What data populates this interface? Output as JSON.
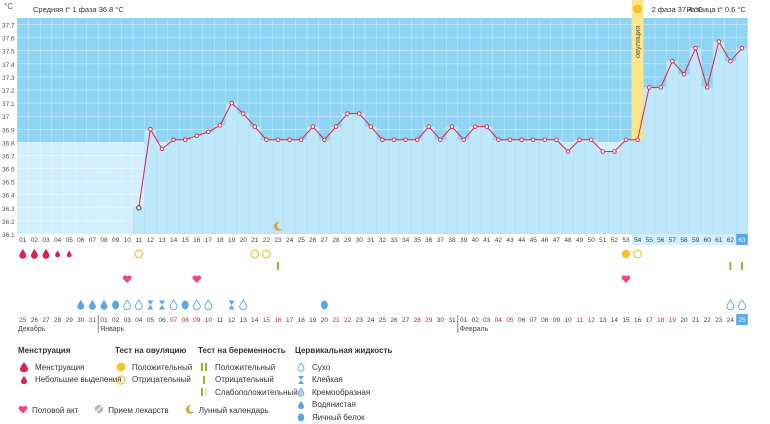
{
  "chart_data": {
    "type": "line",
    "axis_unit": "°C",
    "y_ticks": [
      "36.1",
      "36.2",
      "36.3",
      "36.4",
      "36.5",
      "36.6",
      "36.7",
      "36.8",
      "36.9",
      "37",
      "37.1",
      "37.2",
      "37.3",
      "37.4",
      "37.5",
      "37.6",
      "37.7"
    ],
    "ylim": [
      36.1,
      37.75
    ],
    "cycle_days": [
      "01",
      "02",
      "03",
      "04",
      "05",
      "06",
      "07",
      "08",
      "09",
      "10",
      "11",
      "12",
      "13",
      "14",
      "15",
      "16",
      "17",
      "18",
      "19",
      "20",
      "21",
      "22",
      "23",
      "24",
      "25",
      "26",
      "27",
      "28",
      "29",
      "30",
      "31",
      "32",
      "33",
      "34",
      "35",
      "36",
      "37",
      "38",
      "39",
      "40",
      "41",
      "42",
      "43",
      "44",
      "45",
      "46",
      "47",
      "48",
      "49",
      "50",
      "51",
      "52",
      "53",
      "54",
      "55",
      "56",
      "57",
      "58",
      "59",
      "60",
      "61",
      "62",
      "63"
    ],
    "temperatures": [
      null,
      null,
      null,
      null,
      null,
      null,
      null,
      null,
      null,
      null,
      36.3,
      36.9,
      36.75,
      36.82,
      36.82,
      36.85,
      36.88,
      36.93,
      37.1,
      37.02,
      36.92,
      36.82,
      36.82,
      36.82,
      36.82,
      36.92,
      36.82,
      36.92,
      37.02,
      37.02,
      36.92,
      36.82,
      36.82,
      36.82,
      36.82,
      36.92,
      36.82,
      36.92,
      36.82,
      36.92,
      36.92,
      36.82,
      36.82,
      36.82,
      36.82,
      36.82,
      36.82,
      36.73,
      36.82,
      36.82,
      36.73,
      36.73,
      36.82,
      36.82,
      37.22,
      37.22,
      37.42,
      37.32,
      37.52,
      37.22,
      37.57,
      37.42,
      37.52
    ],
    "phase1_label": "Средняя t° 1 фаза 36.8 °C",
    "phase2_label": "2 фаза 37.4 °C",
    "diff_label": "Разница t° 0.6 °C",
    "ovulation_label": "овуляция",
    "ovulation_day": 54,
    "calendar_dates": [
      "25",
      "26",
      "27",
      "28",
      "29",
      "30",
      "31",
      "01",
      "02",
      "03",
      "04",
      "05",
      "06",
      "07",
      "08",
      "09",
      "10",
      "11",
      "12",
      "13",
      "14",
      "15",
      "16",
      "17",
      "18",
      "19",
      "20",
      "21",
      "22",
      "23",
      "24",
      "25",
      "26",
      "27",
      "28",
      "29",
      "30",
      "31",
      "01",
      "02",
      "03",
      "04",
      "05",
      "06",
      "07",
      "08",
      "09",
      "10",
      "11",
      "12",
      "13",
      "14",
      "15",
      "16",
      "17",
      "18",
      "19",
      "20",
      "21",
      "22",
      "23",
      "24",
      "25"
    ],
    "red_date_indices": [
      0,
      6,
      13,
      14,
      15,
      21,
      22,
      27,
      28,
      34,
      35,
      41,
      42,
      48,
      49,
      55,
      56,
      62
    ],
    "month_labels": [
      {
        "index": 0,
        "text": "Декабрь"
      },
      {
        "index": 7,
        "text": "Январь"
      },
      {
        "index": 38,
        "text": "Февраль"
      }
    ],
    "menstruation": [
      {
        "day": 1,
        "kind": "heavy"
      },
      {
        "day": 2,
        "kind": "heavy"
      },
      {
        "day": 3,
        "kind": "heavy"
      },
      {
        "day": 4,
        "kind": "light"
      },
      {
        "day": 5,
        "kind": "light"
      }
    ],
    "ovulation_tests": [
      {
        "day": 11,
        "kind": "negative"
      },
      {
        "day": 21,
        "kind": "negative"
      },
      {
        "day": 22,
        "kind": "negative"
      },
      {
        "day": 53,
        "kind": "positive"
      },
      {
        "day": 54,
        "kind": "negative"
      }
    ],
    "pregnancy_tests": [
      {
        "day": 23,
        "kind": "negative"
      },
      {
        "day": 62,
        "kind": "negative"
      },
      {
        "day": 63,
        "kind": "negative"
      }
    ],
    "intercourse_days": [
      10,
      16,
      53
    ],
    "fluid": [
      {
        "day": 6,
        "kind": "watery"
      },
      {
        "day": 7,
        "kind": "watery"
      },
      {
        "day": 8,
        "kind": "watery"
      },
      {
        "day": 9,
        "kind": "eggwhite"
      },
      {
        "day": 10,
        "kind": "dry"
      },
      {
        "day": 11,
        "kind": "dry"
      },
      {
        "day": 12,
        "kind": "sticky"
      },
      {
        "day": 13,
        "kind": "sticky"
      },
      {
        "day": 14,
        "kind": "dry"
      },
      {
        "day": 15,
        "kind": "eggwhite"
      },
      {
        "day": 16,
        "kind": "dry"
      },
      {
        "day": 17,
        "kind": "dry"
      },
      {
        "day": 19,
        "kind": "sticky"
      },
      {
        "day": 20,
        "kind": "dry"
      },
      {
        "day": 27,
        "kind": "eggwhite"
      },
      {
        "day": 62,
        "kind": "dry"
      },
      {
        "day": 63,
        "kind": "dry"
      }
    ],
    "moon_day": 23,
    "current_day": 63
  },
  "legend": {
    "menstruation": {
      "title": "Менструация",
      "items": [
        "Менструация",
        "Небольшие выделения"
      ]
    },
    "ovulation_test": {
      "title": "Тест на овуляцию",
      "items": [
        "Положительный",
        "Отрицательный"
      ]
    },
    "pregnancy_test": {
      "title": "Тест на беременность",
      "items": [
        "Положительный",
        "Отрицательный",
        "Слабоположительный"
      ]
    },
    "cervical": {
      "title": "Цервикальная жидкость",
      "items": [
        "Сухо",
        "Клейкая",
        "Кремообразная",
        "Водянистая",
        "Яичный белок"
      ]
    },
    "bottom": [
      "Половой акт",
      "Прием лекарств",
      "Лунный календарь"
    ]
  },
  "colors": {
    "plot_bg": "#d3efff",
    "plot_upper": "#8fd4f2",
    "line": "#e0204a",
    "ovulation": "#ffe58a",
    "bars": "#bfe7fa",
    "red_text": "#e02040",
    "pregnancy_green": "#8bbd1f",
    "heart": "#ee4488",
    "drop": "#5aa6e6",
    "yellow": "#f2c530"
  }
}
